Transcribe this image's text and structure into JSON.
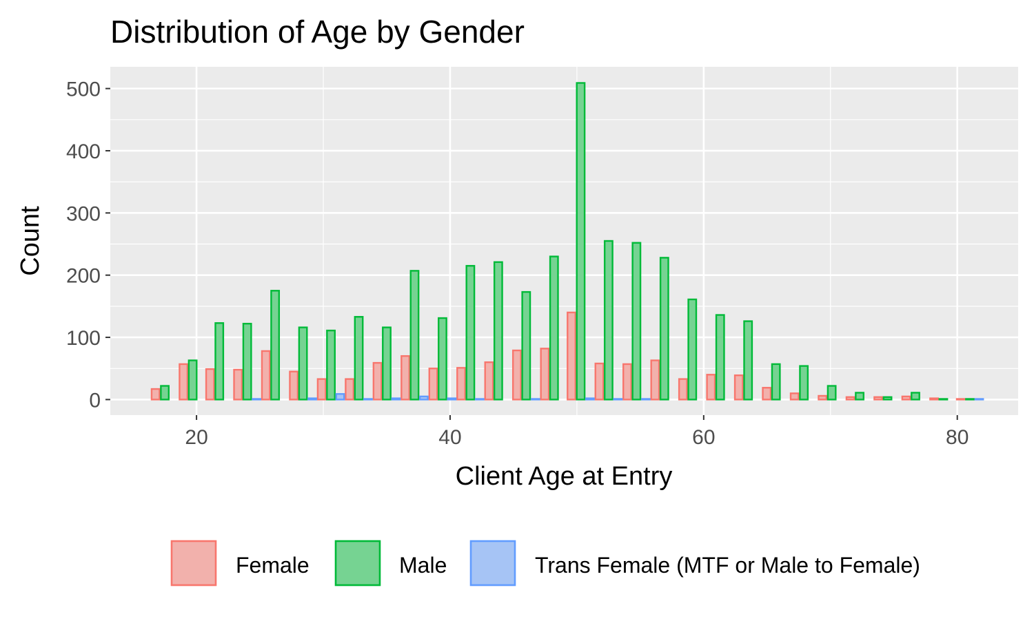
{
  "chart_data": {
    "type": "bar",
    "title": "Distribution of Age by Gender",
    "xlabel": "Client Age at Entry",
    "ylabel": "Count",
    "xlim": [
      13.2,
      84.8
    ],
    "ylim": [
      -25,
      535
    ],
    "x_ticks": [
      20,
      40,
      60,
      80
    ],
    "y_ticks": [
      0,
      100,
      200,
      300,
      400,
      500
    ],
    "grid": true,
    "legend_position": "bottom",
    "x": [
      17.5,
      19.7,
      21.8,
      24.0,
      26.2,
      28.4,
      30.6,
      32.8,
      35.0,
      37.2,
      39.4,
      41.6,
      43.8,
      46.0,
      48.2,
      50.3,
      52.5,
      54.7,
      56.9,
      59.1,
      61.3,
      63.5,
      65.7,
      67.9,
      70.1,
      72.3,
      74.5,
      76.7,
      78.9,
      81.0
    ],
    "series": [
      {
        "name": "Female",
        "fill": "#f8766d",
        "values": [
          17,
          57,
          49,
          48,
          78,
          45,
          33,
          33,
          59,
          70,
          50,
          51,
          60,
          79,
          82,
          140,
          58,
          57,
          63,
          33,
          40,
          39,
          19,
          10,
          6,
          4,
          4,
          5,
          2,
          1
        ]
      },
      {
        "name": "Male",
        "fill": "#00ba38",
        "values": [
          22,
          63,
          123,
          122,
          175,
          116,
          111,
          133,
          116,
          207,
          131,
          215,
          221,
          173,
          230,
          509,
          255,
          252,
          228,
          161,
          136,
          126,
          57,
          54,
          22,
          11,
          4,
          11,
          1,
          1
        ]
      },
      {
        "name": "Trans Female (MTF or Male to Female)",
        "fill": "#619cff",
        "values": [
          0,
          0,
          0,
          1,
          0,
          2,
          9,
          1,
          2,
          5,
          2,
          1,
          0,
          1,
          0,
          2,
          1,
          1,
          0,
          0,
          0,
          0,
          0,
          0,
          0,
          0,
          0,
          0,
          0,
          1
        ]
      }
    ]
  }
}
